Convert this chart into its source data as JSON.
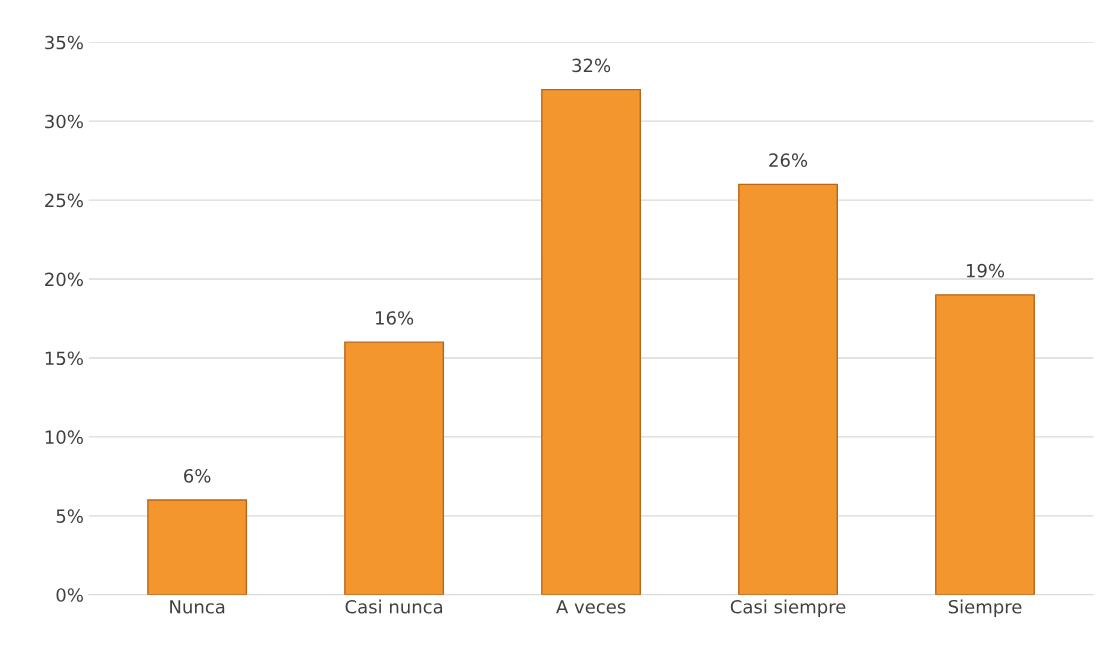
{
  "chart_data": {
    "type": "bar",
    "categories": [
      "Nunca",
      "Casi nunca",
      "A veces",
      "Casi siempre",
      "Siempre"
    ],
    "values": [
      6,
      16,
      32,
      26,
      19
    ],
    "value_labels": [
      "6%",
      "16%",
      "32%",
      "26%",
      "19%"
    ],
    "color": "#f3962e",
    "ylim": [
      0,
      35
    ],
    "yticks": [
      {
        "value": 0,
        "label": "0%"
      },
      {
        "value": 5,
        "label": "5%"
      },
      {
        "value": 10,
        "label": "10%"
      },
      {
        "value": 15,
        "label": "15%"
      },
      {
        "value": 20,
        "label": "20%"
      },
      {
        "value": 25,
        "label": "25%"
      },
      {
        "value": 30,
        "label": "30%"
      },
      {
        "value": 35,
        "label": "35%"
      }
    ],
    "grid": "y"
  }
}
